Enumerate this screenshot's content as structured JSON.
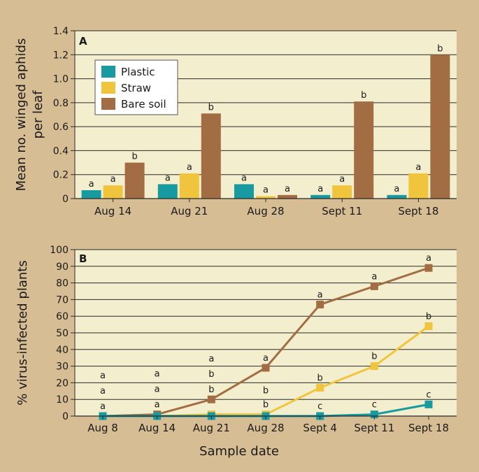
{
  "colors": {
    "frame": "#d7bd93",
    "plot_bg": "#f3eecd",
    "plastic": "#179aa0",
    "straw": "#f0c43c",
    "bare_soil": "#a26d43"
  },
  "chart_data": [
    {
      "panel": "A",
      "type": "bar",
      "ylabel": "Mean no. winged aphids per leaf",
      "ylabel_lines": [
        "Mean no. winged aphids",
        "per leaf"
      ],
      "ylim": [
        0,
        1.4
      ],
      "yticks": [
        "0",
        "0.2",
        "0.4",
        "0.6",
        "0.8",
        "1.0",
        "1.2",
        "1.4"
      ],
      "ytick_values": [
        0,
        0.2,
        0.4,
        0.6,
        0.8,
        1.0,
        1.2,
        1.4
      ],
      "grid": true,
      "legend_position": "top-left",
      "categories": [
        "Aug 14",
        "Aug 21",
        "Aug 28",
        "Sept 11",
        "Sept 18"
      ],
      "series": [
        {
          "name": "Plastic",
          "values": [
            0.07,
            0.12,
            0.12,
            0.03,
            0.03
          ],
          "letters": [
            "a",
            "a",
            "a",
            "a",
            "a"
          ]
        },
        {
          "name": "Straw",
          "values": [
            0.11,
            0.21,
            0.02,
            0.11,
            0.21
          ],
          "letters": [
            "a",
            "a",
            "a",
            "a",
            "a"
          ]
        },
        {
          "name": "Bare soil",
          "values": [
            0.3,
            0.71,
            0.03,
            0.81,
            1.2
          ],
          "letters": [
            "b",
            "b",
            "a",
            "b",
            "b"
          ]
        }
      ]
    },
    {
      "panel": "B",
      "type": "line",
      "xlabel": "Sample date",
      "ylabel": "% virus-infected plants",
      "ylim": [
        0,
        100
      ],
      "yticks": [
        "0",
        "10",
        "20",
        "30",
        "40",
        "50",
        "60",
        "70",
        "80",
        "90",
        "100"
      ],
      "ytick_values": [
        0,
        10,
        20,
        30,
        40,
        50,
        60,
        70,
        80,
        90,
        100
      ],
      "grid": true,
      "categories": [
        "Aug 8",
        "Aug 14",
        "Aug 21",
        "Aug 28",
        "Sept 4",
        "Sept 11",
        "Sept 18"
      ],
      "series": [
        {
          "name": "Plastic",
          "values": [
            0,
            0,
            0,
            0,
            0,
            1,
            7
          ]
        },
        {
          "name": "Straw",
          "values": [
            0,
            0,
            1,
            1,
            17,
            30,
            54
          ]
        },
        {
          "name": "Bare soil",
          "values": [
            0,
            1,
            10,
            29,
            67,
            78,
            89
          ]
        }
      ],
      "letters": {
        "Bare soil": [
          "a",
          "a",
          "a",
          "a",
          "a",
          "a",
          "a"
        ],
        "Straw": [
          "a",
          "a",
          "b",
          "b",
          "b",
          "b",
          "b"
        ],
        "Plastic": [
          "a",
          "a",
          "b",
          "b",
          "c",
          "c",
          "c"
        ]
      }
    }
  ]
}
